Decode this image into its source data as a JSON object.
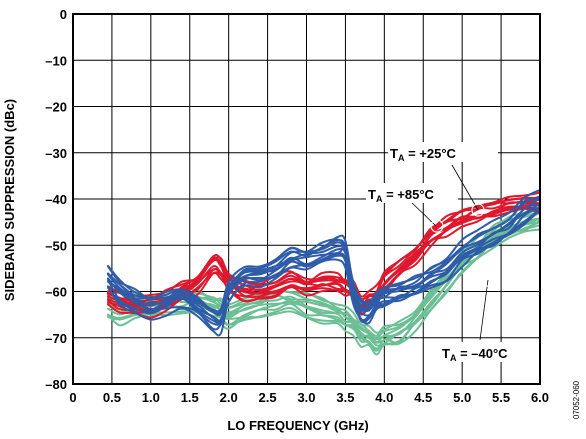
{
  "chart_data": {
    "type": "line",
    "xlabel": "LO FREQUENCY (GHz)",
    "ylabel": "SIDEBAND SUPPRESSION (dBc)",
    "xlim": [
      0,
      6
    ],
    "ylim": [
      -80,
      0
    ],
    "xticks": [
      "0",
      "0.5",
      "1.0",
      "1.5",
      "2.0",
      "2.5",
      "3.0",
      "3.5",
      "4.0",
      "4.5",
      "5.0",
      "5.5",
      "6.0"
    ],
    "yticks": [
      "0",
      "–10",
      "–20",
      "–30",
      "–40",
      "–50",
      "–60",
      "–70",
      "–80"
    ],
    "grid": true,
    "figure_id": "07052-060",
    "colors": {
      "t25": "#2e5ca8",
      "t85": "#e0182d",
      "tm40": "#6cbf94"
    },
    "annotations": [
      {
        "id": "t25",
        "T": "T",
        "sub": "A",
        "rest": " = +25°C"
      },
      {
        "id": "t85",
        "T": "T",
        "sub": "A",
        "rest": " = +85°C"
      },
      {
        "id": "tm40",
        "T": "T",
        "sub": "A",
        "rest": " = –40°C"
      }
    ],
    "series": [
      {
        "key": "t25",
        "color": "#2e5ca8",
        "spread": 4.5,
        "x": [
          0.45,
          0.6,
          0.8,
          1.0,
          1.2,
          1.4,
          1.6,
          1.8,
          1.9,
          2.0,
          2.2,
          2.4,
          2.6,
          2.8,
          3.0,
          3.2,
          3.4,
          3.5,
          3.6,
          3.7,
          3.8,
          3.9,
          4.0,
          4.2,
          4.4,
          4.6,
          4.8,
          5.0,
          5.2,
          5.4,
          5.6,
          5.8,
          6.0
        ],
        "y": [
          -57,
          -60,
          -62,
          -63,
          -62,
          -61,
          -63,
          -66,
          -66,
          -60,
          -57,
          -56,
          -55,
          -53,
          -53,
          -52,
          -51,
          -52,
          -60,
          -64,
          -64,
          -62,
          -61,
          -60,
          -59,
          -57,
          -55,
          -52,
          -50,
          -48,
          -46,
          -43,
          -41
        ]
      },
      {
        "key": "t85",
        "color": "#e0182d",
        "spread": 3.5,
        "x": [
          0.45,
          0.6,
          0.8,
          1.0,
          1.2,
          1.4,
          1.6,
          1.8,
          1.9,
          2.0,
          2.2,
          2.4,
          2.6,
          2.8,
          3.0,
          3.2,
          3.4,
          3.5,
          3.6,
          3.7,
          3.8,
          3.9,
          4.0,
          4.2,
          4.4,
          4.6,
          4.8,
          5.0,
          5.2,
          5.4,
          5.6,
          5.8,
          6.0
        ],
        "y": [
          -61,
          -62,
          -63,
          -63,
          -62,
          -60,
          -58,
          -54,
          -55,
          -58,
          -60,
          -60,
          -59,
          -58,
          -59,
          -58,
          -58,
          -59,
          -60,
          -63,
          -62,
          -61,
          -58,
          -55,
          -52,
          -48,
          -46,
          -44,
          -43,
          -42,
          -41,
          -41,
          -41
        ]
      },
      {
        "key": "tm40",
        "color": "#6cbf94",
        "spread": 4.5,
        "x": [
          0.45,
          0.6,
          0.8,
          1.0,
          1.2,
          1.4,
          1.6,
          1.8,
          1.9,
          2.0,
          2.2,
          2.4,
          2.6,
          2.8,
          3.0,
          3.2,
          3.4,
          3.5,
          3.6,
          3.7,
          3.8,
          3.9,
          4.0,
          4.2,
          4.4,
          4.6,
          4.8,
          5.0,
          5.2,
          5.4,
          5.6,
          5.8,
          6.0
        ],
        "y": [
          -63,
          -64,
          -63,
          -63,
          -62,
          -62,
          -62,
          -63,
          -64,
          -65,
          -64,
          -63,
          -62,
          -62,
          -63,
          -64,
          -65,
          -66,
          -67,
          -69,
          -70,
          -71,
          -70,
          -69,
          -66,
          -62,
          -58,
          -54,
          -51,
          -48,
          -46,
          -45,
          -44
        ]
      }
    ]
  }
}
